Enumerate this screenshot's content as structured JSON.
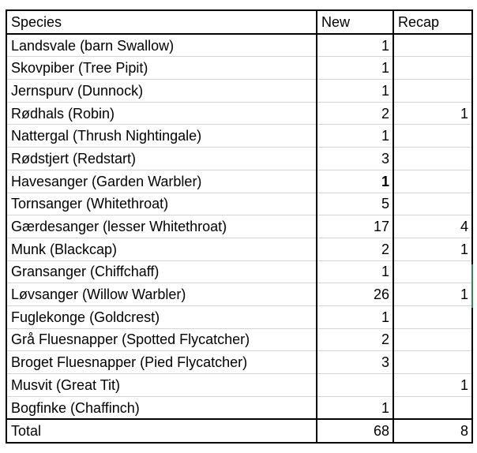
{
  "table": {
    "headers": {
      "species": "Species",
      "new": "New",
      "recap": "Recap"
    },
    "rows": [
      {
        "species": "Landsvale (barn Swallow)",
        "new": "1",
        "recap": ""
      },
      {
        "species": "Skovpiber (Tree Pipit)",
        "new": "1",
        "recap": ""
      },
      {
        "species": "Jernspurv (Dunnock)",
        "new": "1",
        "recap": ""
      },
      {
        "species": "Rødhals (Robin)",
        "new": "2",
        "recap": "1"
      },
      {
        "species": "Nattergal (Thrush Nightingale)",
        "new": "1",
        "recap": ""
      },
      {
        "species": "Rødstjert (Redstart)",
        "new": "3",
        "recap": ""
      },
      {
        "species": "Havesanger (Garden Warbler)",
        "new": "1",
        "recap": ""
      },
      {
        "species": "Tornsanger (Whitethroat)",
        "new": "5",
        "recap": ""
      },
      {
        "species": "Gærdesanger (lesser Whitethroat)",
        "new": "17",
        "recap": "4"
      },
      {
        "species": "Munk (Blackcap)",
        "new": "2",
        "recap": "1"
      },
      {
        "species": "Gransanger (Chiffchaff)",
        "new": "1",
        "recap": ""
      },
      {
        "species": "Løvsanger (Willow Warbler)",
        "new": "26",
        "recap": "1"
      },
      {
        "species": "Fuglekonge (Goldcrest)",
        "new": "1",
        "recap": ""
      },
      {
        "species": "Grå Fluesnapper (Spotted Flycatcher)",
        "new": "2",
        "recap": ""
      },
      {
        "species": "Broget Fluesnapper (Pied Flycatcher)",
        "new": "3",
        "recap": ""
      },
      {
        "species": "Musvit (Great Tit)",
        "new": "",
        "recap": "1"
      },
      {
        "species": "Bogfinke (Chaffinch)",
        "new": "1",
        "recap": ""
      }
    ],
    "total": {
      "label": "Total",
      "new": "68",
      "recap": "8"
    }
  }
}
